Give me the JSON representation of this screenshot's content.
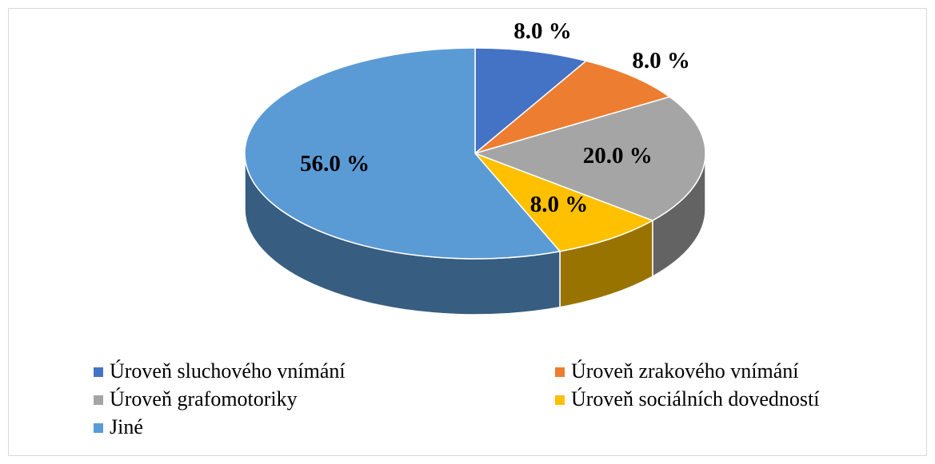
{
  "chart_data": {
    "type": "pie",
    "categories": [
      "Úroveň sluchového vnímání",
      "Úroveň zrakového vnímání",
      "Úroveň grafomotoriky",
      "Úroveň sociálních dovedností",
      "Jiné"
    ],
    "values": [
      8,
      8,
      20,
      8,
      56
    ],
    "value_labels": [
      "8.0 %",
      "8.0 %",
      "20.0 %",
      "8.0 %",
      "56.0 %"
    ],
    "colors": [
      "#4472c4",
      "#ed7d31",
      "#a5a5a5",
      "#ffc000",
      "#5b9bd5"
    ]
  }
}
